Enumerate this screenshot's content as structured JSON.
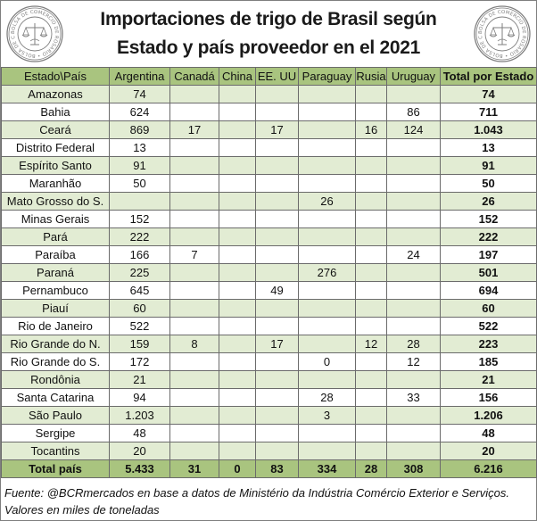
{
  "title": {
    "line1": "Importaciones de trigo de Brasil según",
    "line2": "Estado y país proveedor en el 2021"
  },
  "seal_text": "BOLSA DE COMERCIO DE ROSARIO",
  "colors": {
    "header_bg": "#a9c47f",
    "band_bg": "#e2ecd3",
    "border": "#6b6b6b",
    "seal": "#7f7f7f"
  },
  "chart_data": {
    "type": "table",
    "title": "Importaciones de trigo de Brasil según Estado y país proveedor en el 2021",
    "columns": [
      "Estado\\País",
      "Argentina",
      "Canadá",
      "China",
      "EE. UU",
      "Paraguay",
      "Rusia",
      "Uruguay",
      "Total por Estado"
    ],
    "rows": [
      [
        "Amazonas",
        "74",
        "",
        "",
        "",
        "",
        "",
        "",
        "74"
      ],
      [
        "Bahia",
        "624",
        "",
        "",
        "",
        "",
        "",
        "86",
        "711"
      ],
      [
        "Ceará",
        "869",
        "17",
        "",
        "17",
        "",
        "16",
        "124",
        "1.043"
      ],
      [
        "Distrito Federal",
        "13",
        "",
        "",
        "",
        "",
        "",
        "",
        "13"
      ],
      [
        "Espírito Santo",
        "91",
        "",
        "",
        "",
        "",
        "",
        "",
        "91"
      ],
      [
        "Maranhão",
        "50",
        "",
        "",
        "",
        "",
        "",
        "",
        "50"
      ],
      [
        "Mato Grosso do S.",
        "",
        "",
        "",
        "",
        "26",
        "",
        "",
        "26"
      ],
      [
        "Minas Gerais",
        "152",
        "",
        "",
        "",
        "",
        "",
        "",
        "152"
      ],
      [
        "Pará",
        "222",
        "",
        "",
        "",
        "",
        "",
        "",
        "222"
      ],
      [
        "Paraíba",
        "166",
        "7",
        "",
        "",
        "",
        "",
        "24",
        "197"
      ],
      [
        "Paraná",
        "225",
        "",
        "",
        "",
        "276",
        "",
        "",
        "501"
      ],
      [
        "Pernambuco",
        "645",
        "",
        "",
        "49",
        "",
        "",
        "",
        "694"
      ],
      [
        "Piauí",
        "60",
        "",
        "",
        "",
        "",
        "",
        "",
        "60"
      ],
      [
        "Rio de Janeiro",
        "522",
        "",
        "",
        "",
        "",
        "",
        "",
        "522"
      ],
      [
        "Rio Grande do N.",
        "159",
        "8",
        "",
        "17",
        "",
        "12",
        "28",
        "223"
      ],
      [
        "Rio Grande do S.",
        "172",
        "",
        "",
        "",
        "0",
        "",
        "12",
        "185"
      ],
      [
        "Rondônia",
        "21",
        "",
        "",
        "",
        "",
        "",
        "",
        "21"
      ],
      [
        "Santa Catarina",
        "94",
        "",
        "",
        "",
        "28",
        "",
        "33",
        "156"
      ],
      [
        "São Paulo",
        "1.203",
        "",
        "",
        "",
        "3",
        "",
        "",
        "1.206"
      ],
      [
        "Sergipe",
        "48",
        "",
        "",
        "",
        "",
        "",
        "",
        "48"
      ],
      [
        "Tocantins",
        "20",
        "",
        "",
        "",
        "",
        "",
        "",
        "20"
      ]
    ],
    "total_row": [
      "Total país",
      "5.433",
      "31",
      "0",
      "83",
      "334",
      "28",
      "308",
      "6.216"
    ]
  },
  "footnotes": {
    "source": "Fuente: @BCRmercados en base a datos de Ministério da Indústria Comércio Exterior e Serviços.",
    "units": "Valores en miles de toneladas"
  }
}
